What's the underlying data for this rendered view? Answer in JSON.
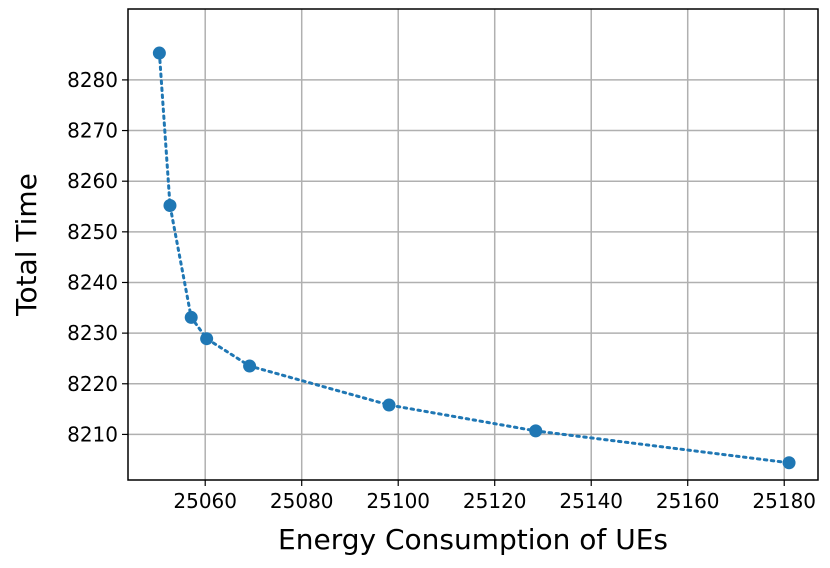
{
  "chart_data": {
    "type": "line",
    "title": "",
    "xlabel": "Energy Consumption of UEs",
    "ylabel": "Total Time",
    "xlim": [
      25044,
      25187
    ],
    "ylim": [
      8201,
      8294
    ],
    "xticks": [
      25060,
      25080,
      25100,
      25120,
      25140,
      25160,
      25180
    ],
    "yticks": [
      8210,
      8220,
      8230,
      8240,
      8250,
      8260,
      8270,
      8280
    ],
    "grid": true,
    "series": [
      {
        "color": "#1f77b4",
        "line_style": "dotted",
        "marker": "circle",
        "x": [
          25050.5,
          25052.7,
          25057.1,
          25060.3,
          25069.2,
          25098.1,
          25128.5,
          25181.0
        ],
        "y": [
          8285.3,
          8255.2,
          8233.1,
          8228.9,
          8223.5,
          8215.8,
          8210.7,
          8204.4
        ]
      }
    ]
  }
}
